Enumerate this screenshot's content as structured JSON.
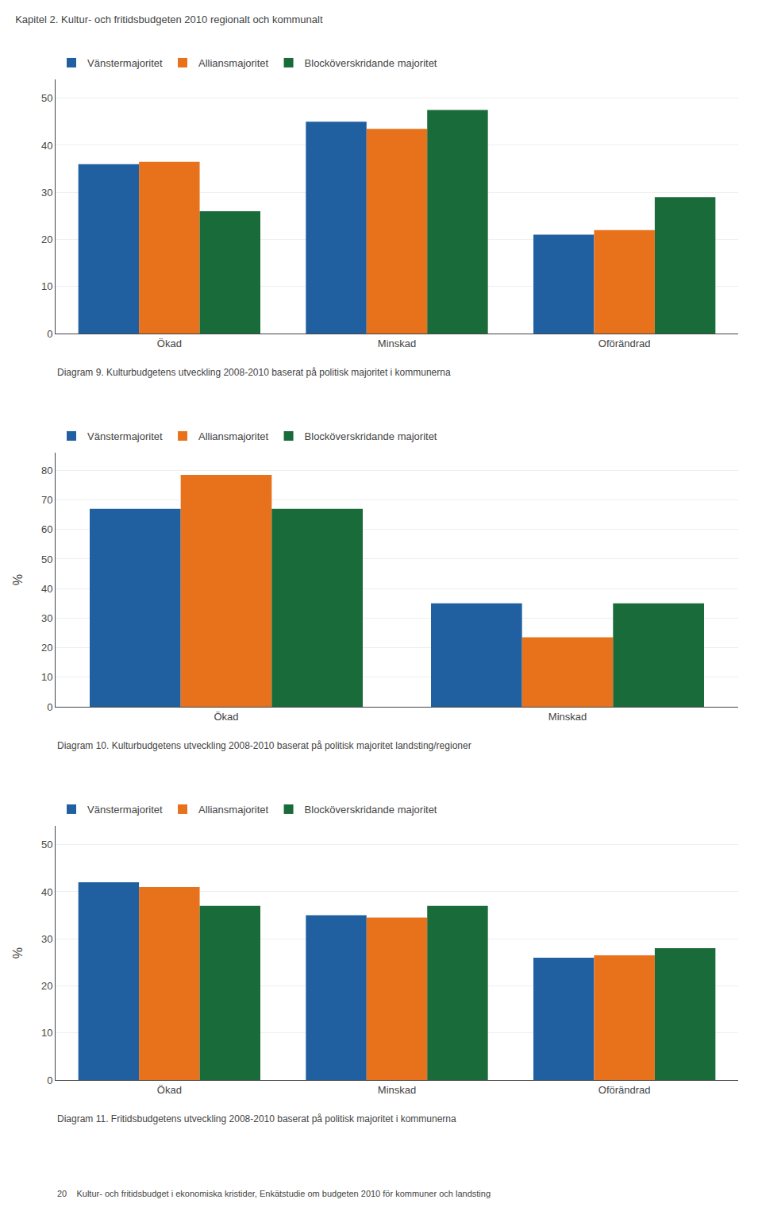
{
  "title": "Kapitel 2. Kultur- och fritidsbudgeten 2010 regionalt och kommunalt",
  "annotations": [
    "20    Kultur- och fritidsbudget i ekonomiska kristider, Enkätstudie om budgeten 2010 för kommuner och landsting"
  ],
  "chart_data": [
    {
      "type": "bar",
      "title": "Diagram 9. Kulturbudgetens utveckling 2008-2010 baserat på politisk majoritet i kommunerna",
      "categories": [
        "Ökad",
        "Minskad",
        "Oförändrad"
      ],
      "series": [
        {
          "name": "Vänstermajoritet",
          "color": "#2060a0",
          "values": [
            36,
            45,
            21
          ]
        },
        {
          "name": "Alliansmajoritet",
          "color": "#e8721c",
          "values": [
            36.5,
            43.5,
            22
          ]
        },
        {
          "name": "Blocköverskridande majoritet",
          "color": "#1a6b3a",
          "values": [
            26,
            47.5,
            29
          ]
        }
      ],
      "ylim": [
        0,
        54
      ],
      "yticks": [
        0,
        10,
        20,
        30,
        40,
        50
      ],
      "grid": true,
      "legend": "top"
    },
    {
      "type": "bar",
      "title": "Diagram 10. Kulturbudgetens utveckling 2008-2010 baserat på politisk majoritet landsting/regioner",
      "ylabel": "%",
      "categories": [
        "Ökad",
        "Minskad"
      ],
      "series": [
        {
          "name": "Vänstermajoritet",
          "color": "#2060a0",
          "values": [
            67,
            35
          ]
        },
        {
          "name": "Alliansmajoritet",
          "color": "#e8721c",
          "values": [
            78.5,
            23.5
          ]
        },
        {
          "name": "Blocköverskridande majoritet",
          "color": "#1a6b3a",
          "values": [
            67,
            35
          ]
        }
      ],
      "ylim": [
        0,
        86
      ],
      "yticks": [
        0,
        10,
        20,
        30,
        40,
        50,
        60,
        70,
        80
      ],
      "grid": true,
      "legend": "top"
    },
    {
      "type": "bar",
      "title": "Diagram 11. Fritidsbudgetens utveckling 2008-2010 baserat på politisk majoritet i kommunerna",
      "ylabel": "%",
      "categories": [
        "Ökad",
        "Minskad",
        "Oförändrad"
      ],
      "series": [
        {
          "name": "Vänstermajoritet",
          "color": "#2060a0",
          "values": [
            42,
            35,
            26
          ]
        },
        {
          "name": "Alliansmajoritet",
          "color": "#e8721c",
          "values": [
            41,
            34.5,
            26.5
          ]
        },
        {
          "name": "Blocköverskridande majoritet",
          "color": "#1a6b3a",
          "values": [
            37,
            37,
            28
          ]
        }
      ],
      "ylim": [
        0,
        54
      ],
      "yticks": [
        0,
        10,
        20,
        30,
        40,
        50
      ],
      "grid": true,
      "legend": "top"
    }
  ]
}
